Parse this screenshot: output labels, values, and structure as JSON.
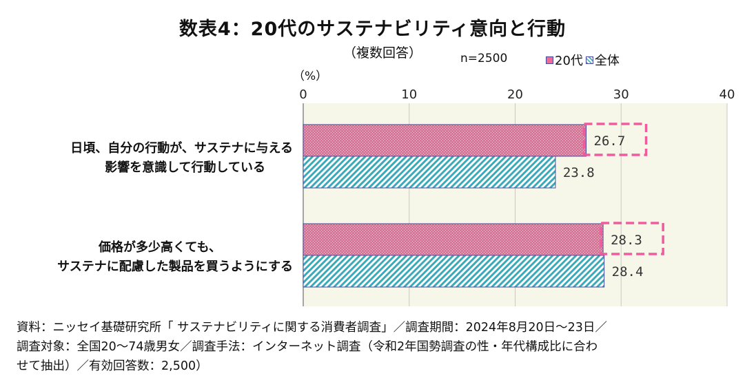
{
  "title": "数表4：20代のサステナビリティ意向と行動",
  "subtitle": "（複数回答）",
  "sample_size": "n=2500",
  "unit": "（%）",
  "colors": {
    "pink": "#f06a98",
    "teal": "#4fb8c6",
    "highlight": "#ef5b9c",
    "plot_bg": "#f6f7e8"
  },
  "chart_data": {
    "type": "bar",
    "orientation": "horizontal",
    "categories": [
      [
        "日頃、自分の行動が、サステナに与える",
        "影響を意識して行動している"
      ],
      [
        "価格が多少高くても、",
        "サステナに配慮した製品を買うようにする"
      ]
    ],
    "series": [
      {
        "name": "20代",
        "values": [
          26.7,
          28.3
        ]
      },
      {
        "name": "全体",
        "values": [
          23.8,
          28.4
        ]
      }
    ],
    "xlim": [
      0,
      40
    ],
    "xticks": [
      "0",
      "10",
      "20",
      "30",
      "40"
    ],
    "data_labels": [
      [
        "26.7",
        "28.3"
      ],
      [
        "23.8",
        "28.4"
      ]
    ],
    "grid": true,
    "legend_position": "top-right"
  },
  "footnote": [
    "資料：ニッセイ基礎研究所「 サステナビリティに関する消費者調査」／調査期間：2024年8月20日～23日／",
    "調査対象：全国20～74歳男女／調査手法：インターネット調査（令和2年国勢調査の性・年代構成比に合わ",
    "せて抽出）／有効回答数：2,500）"
  ]
}
